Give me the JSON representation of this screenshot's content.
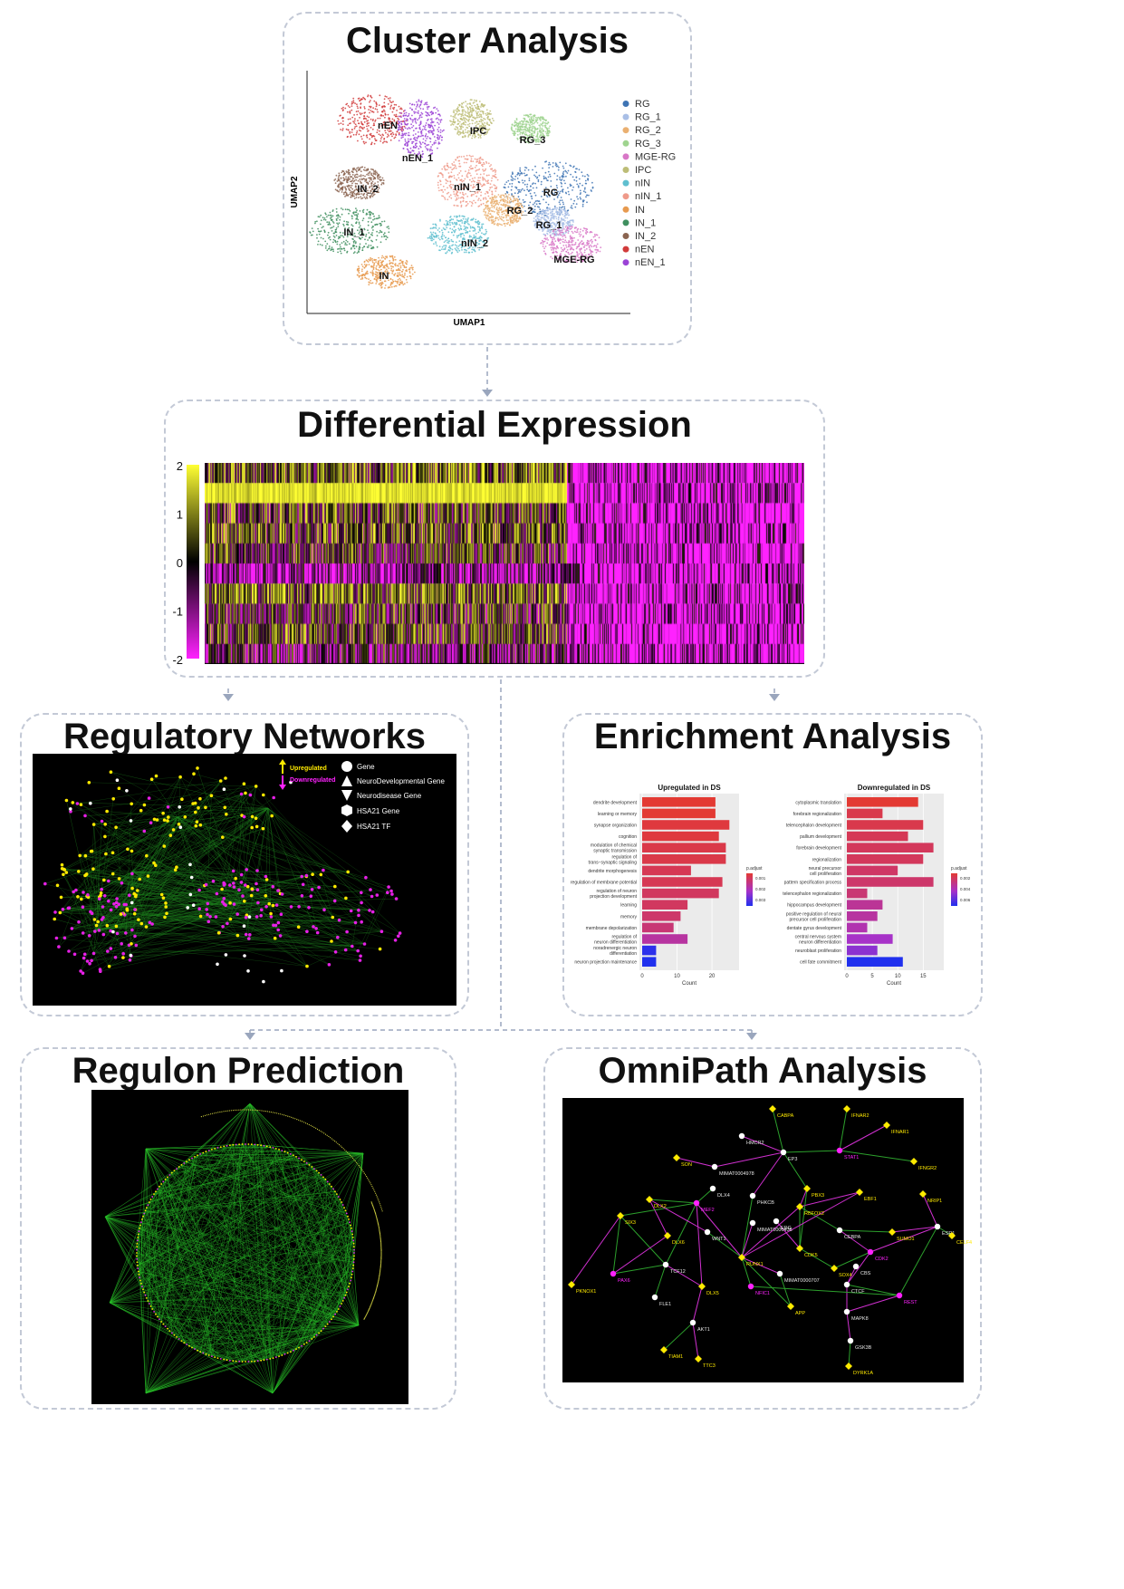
{
  "panels": {
    "cluster": {
      "title": "Cluster Analysis"
    },
    "diffexp": {
      "title": "Differential Expression"
    },
    "regnet": {
      "title": "Regulatory Networks"
    },
    "enrich": {
      "title": "Enrichment Analysis"
    },
    "regulon": {
      "title": "Regulon Prediction"
    },
    "omni": {
      "title": "OmniPath Analysis"
    }
  },
  "umap": {
    "xlabel": "UMAP1",
    "ylabel": "UMAP2",
    "legend": [
      {
        "label": "RG",
        "color": "#3e74b4"
      },
      {
        "label": "RG_1",
        "color": "#a9bfe6"
      },
      {
        "label": "RG_2",
        "color": "#eab071"
      },
      {
        "label": "RG_3",
        "color": "#9fd48f"
      },
      {
        "label": "MGE-RG",
        "color": "#d877c7"
      },
      {
        "label": "IPC",
        "color": "#bdbd77"
      },
      {
        "label": "nIN",
        "color": "#5fbfcf"
      },
      {
        "label": "nIN_1",
        "color": "#ef9a8a"
      },
      {
        "label": "IN",
        "color": "#e79a4f"
      },
      {
        "label": "IN_1",
        "color": "#3f8f5f"
      },
      {
        "label": "IN_2",
        "color": "#8b6450"
      },
      {
        "label": "nEN",
        "color": "#d13b3b"
      },
      {
        "label": "nEN_1",
        "color": "#9b43d6"
      }
    ],
    "cluster_labels": [
      "nEN",
      "nEN_1",
      "IPC",
      "RG_3",
      "IN_2",
      "nIN_1",
      "RG",
      "RG_2",
      "RG_1",
      "IN_1",
      "nIN_2",
      "MGE-RG",
      "IN"
    ]
  },
  "heatmap": {
    "scale_ticks": [
      "2",
      "1",
      "0",
      "-1",
      "-2"
    ],
    "colors": {
      "high": "#ffff33",
      "mid": "#000000",
      "low": "#ff22ff"
    }
  },
  "regnet": {
    "legend": [
      "Upregulated",
      "Downregulated",
      "Gene",
      "NeuroDevelopmental Gene",
      "Neurodisease Gene",
      "HSA21 Gene",
      "HSA21 TF"
    ]
  },
  "enrichment": {
    "axis_label": "Count",
    "legend_title": "p.adjust",
    "up": {
      "title": "Upregulated in DS",
      "terms": [
        "dendrite development",
        "learning or memory",
        "synapse organization",
        "cognition",
        "modulation of chemical synaptic transmission",
        "regulation of trans−synaptic signaling",
        "dendrite morphogenesis",
        "regulation of membrane potential",
        "regulation of neuron projection development",
        "learning",
        "memory",
        "membrane depolarization",
        "regulation of neuron differentiation",
        "noradrenergic neuron differentiation",
        "neuron projection maintenance"
      ],
      "counts": [
        21,
        21,
        25,
        22,
        24,
        24,
        14,
        23,
        22,
        13,
        11,
        9,
        13,
        4,
        4
      ],
      "padj": [
        0.0008,
        0.0008,
        0.0009,
        0.0009,
        0.001,
        0.001,
        0.0011,
        0.0011,
        0.0012,
        0.0012,
        0.0013,
        0.0014,
        0.0018,
        0.0032,
        0.0033
      ],
      "xticks": [
        "0",
        "10",
        "20"
      ],
      "legend_ticks": [
        "0.001",
        "0.002",
        "0.003"
      ],
      "xmax": 27
    },
    "down": {
      "title": "Downregulated in DS",
      "terms": [
        "cytoplasmic translation",
        "forebrain regionalization",
        "telencephalon development",
        "pallium development",
        "forebrain development",
        "regionalization",
        "neural precursor cell proliferation",
        "pattern specification process",
        "telencephalon regionalization",
        "hippocampus development",
        "positive regulation of neural precursor cell proliferation",
        "dentate gyrus development",
        "central nervous system neuron differentiation",
        "neuroblast proliferation",
        "cell fate commitment"
      ],
      "counts": [
        14,
        7,
        15,
        12,
        17,
        15,
        10,
        17,
        4,
        7,
        6,
        4,
        9,
        6,
        11
      ],
      "padj": [
        0.0005,
        0.001,
        0.001,
        0.0012,
        0.0013,
        0.0013,
        0.0015,
        0.0016,
        0.0018,
        0.0025,
        0.0027,
        0.003,
        0.0035,
        0.004,
        0.006
      ],
      "xticks": [
        "0",
        "5",
        "10",
        "15"
      ],
      "legend_ticks": [
        "0.002",
        "0.004",
        "0.006"
      ],
      "xmax": 18.5
    }
  },
  "omni": {
    "nodes": [
      {
        "label": "CABPA",
        "color": "#ffea00"
      },
      {
        "label": "IFNAR2",
        "color": "#ffea00"
      },
      {
        "label": "IFNAR1",
        "color": "#ffea00"
      },
      {
        "label": "HMCR2",
        "color": "#ffffff"
      },
      {
        "label": "STAT1",
        "color": "#ff22ff"
      },
      {
        "label": "SON",
        "color": "#ffea00"
      },
      {
        "label": "MIMAT0004978",
        "color": "#ffffff"
      },
      {
        "label": "EP3",
        "color": "#ffffff"
      },
      {
        "label": "IFNGR2",
        "color": "#ffea00"
      },
      {
        "label": "DLX4",
        "color": "#ffffff"
      },
      {
        "label": "PHKCB",
        "color": "#ffffff"
      },
      {
        "label": "PBX3",
        "color": "#ffea00"
      },
      {
        "label": "EBF1",
        "color": "#ffea00"
      },
      {
        "label": "DLX2",
        "color": "#ffea00"
      },
      {
        "label": "MEF2",
        "color": "#ff22ff"
      },
      {
        "label": "MIMAT0000436",
        "color": "#ffffff"
      },
      {
        "label": "RBFOX2",
        "color": "#ffea00"
      },
      {
        "label": "NRIP1",
        "color": "#ffea00"
      },
      {
        "label": "SIX3",
        "color": "#ffea00"
      },
      {
        "label": "ERG",
        "color": "#ffffff"
      },
      {
        "label": "ESR1",
        "color": "#ffffff"
      },
      {
        "label": "DLX6",
        "color": "#ffea00"
      },
      {
        "label": "WNT1",
        "color": "#ffffff"
      },
      {
        "label": "CEBPA",
        "color": "#ffffff"
      },
      {
        "label": "SUMO1",
        "color": "#ffea00"
      },
      {
        "label": "CELF4",
        "color": "#ffea00"
      },
      {
        "label": "RUNX1",
        "color": "#ffea00"
      },
      {
        "label": "CDK5",
        "color": "#ffea00"
      },
      {
        "label": "CDK2",
        "color": "#ff22ff"
      },
      {
        "label": "MIMAT0000707",
        "color": "#ffffff"
      },
      {
        "label": "PAX6",
        "color": "#ff22ff"
      },
      {
        "label": "TCF12",
        "color": "#ffffff"
      },
      {
        "label": "CBS",
        "color": "#ffffff"
      },
      {
        "label": "SOX4",
        "color": "#ffea00"
      },
      {
        "label": "CTCF",
        "color": "#ffffff"
      },
      {
        "label": "PKNOX1",
        "color": "#ffea00"
      },
      {
        "label": "DLX5",
        "color": "#ffea00"
      },
      {
        "label": "NFIC1",
        "color": "#ff22ff"
      },
      {
        "label": "FLE1",
        "color": "#ffffff"
      },
      {
        "label": "REST",
        "color": "#ff22ff"
      },
      {
        "label": "APP",
        "color": "#ffea00"
      },
      {
        "label": "MAPK8",
        "color": "#ffffff"
      },
      {
        "label": "AKT1",
        "color": "#ffffff"
      },
      {
        "label": "GSK3B",
        "color": "#ffffff"
      },
      {
        "label": "TIAM1",
        "color": "#ffea00"
      },
      {
        "label": "TTC3",
        "color": "#ffea00"
      },
      {
        "label": "DYRK1A",
        "color": "#ffea00"
      }
    ]
  }
}
